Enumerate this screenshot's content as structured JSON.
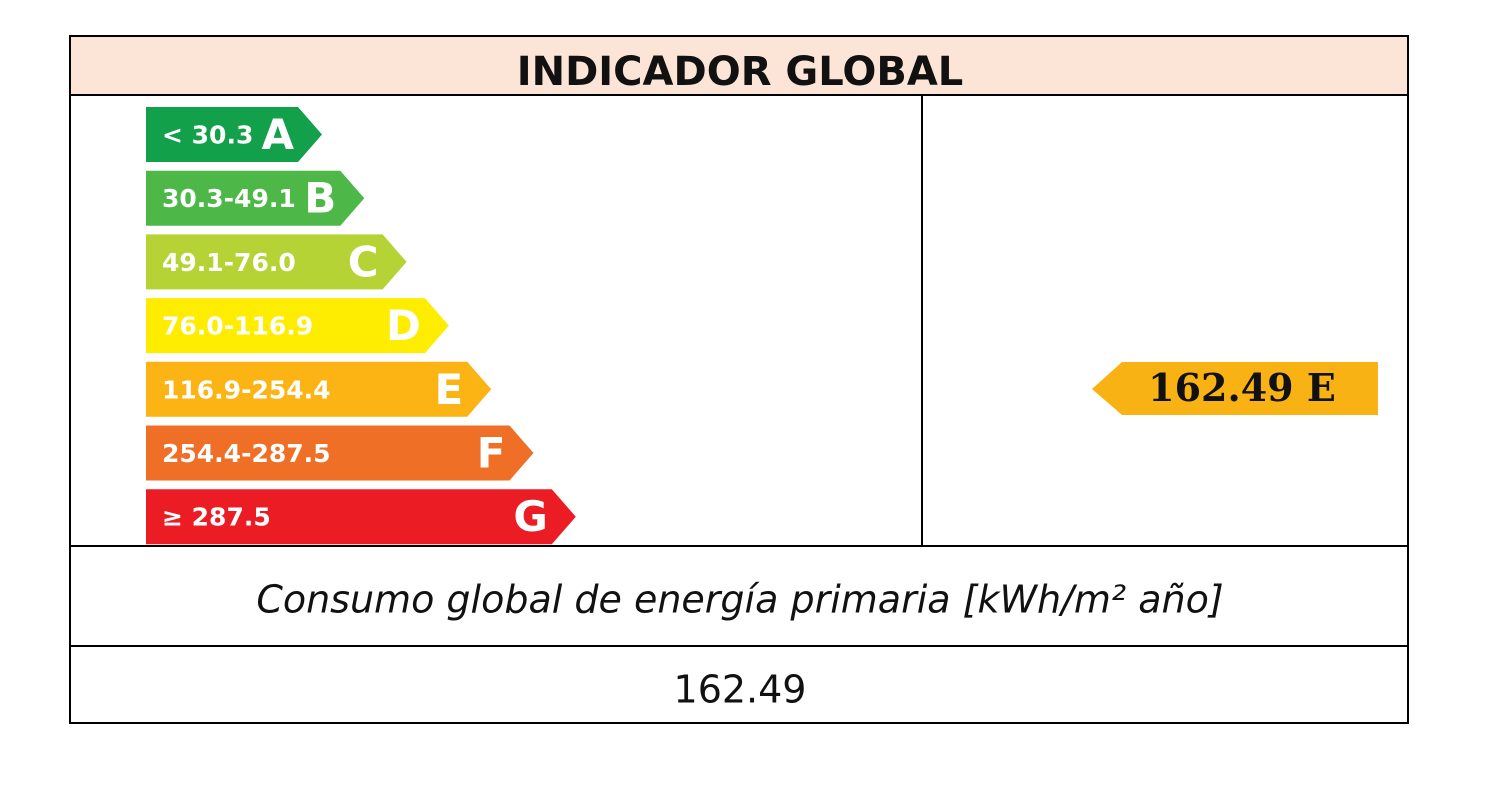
{
  "header": {
    "title": "INDICADOR GLOBAL"
  },
  "scale": [
    {
      "range": "< 30.3",
      "class": "A",
      "color": "#12a04a"
    },
    {
      "range": "30.3-49.1",
      "class": "B",
      "color": "#4db848"
    },
    {
      "range": "49.1-76.0",
      "class": "C",
      "color": "#b5d334"
    },
    {
      "range": "76.0-116.9",
      "class": "D",
      "color": "#ffed00"
    },
    {
      "range": "116.9-254.4",
      "class": "E",
      "color": "#fbb414"
    },
    {
      "range": "254.4-287.5",
      "class": "F",
      "color": "#ef6f27"
    },
    {
      "range": "≥ 287.5",
      "class": "G",
      "color": "#ec1c24"
    }
  ],
  "rating": {
    "value": "162.49",
    "class": "E",
    "color": "#f8b214"
  },
  "footer": {
    "label": "Consumo global de energía primaria [kWh/m² año]",
    "value": "162.49"
  }
}
